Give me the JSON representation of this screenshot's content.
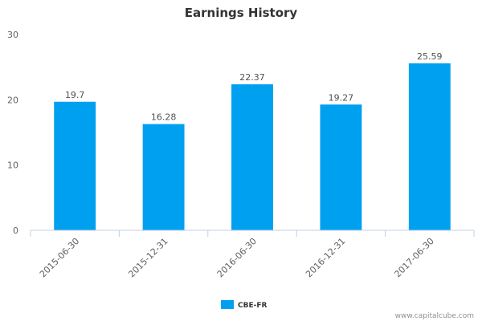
{
  "chart_data": {
    "type": "bar",
    "title": "Earnings History",
    "xlabel": "",
    "ylabel": "",
    "categories": [
      "2015-06-30",
      "2015-12-31",
      "2016-06-30",
      "2016-12-31",
      "2017-06-30"
    ],
    "series": [
      {
        "name": "CBE-FR",
        "values": [
          19.7,
          16.28,
          22.37,
          19.27,
          25.59
        ],
        "color": "#00a0f0"
      }
    ],
    "data_labels": [
      "19.7",
      "16.28",
      "22.37",
      "19.27",
      "25.59"
    ],
    "ylim": [
      0,
      30
    ],
    "yticks": [
      "0",
      "10",
      "20",
      "30"
    ],
    "grid": false,
    "legend": "bottom-center"
  },
  "credit": "www.capitalcube.com"
}
